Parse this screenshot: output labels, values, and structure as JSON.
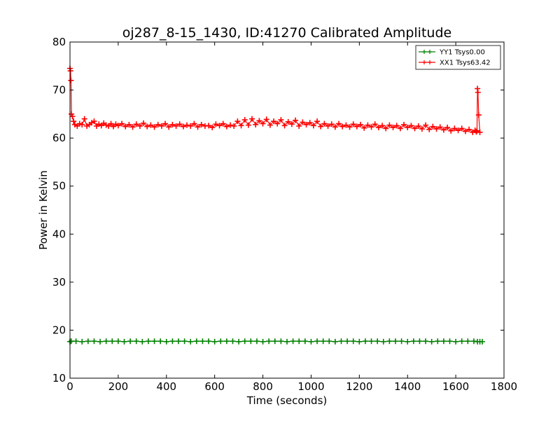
{
  "chart_data": {
    "type": "line",
    "title": "oj287_8-15_1430, ID:41270 Calibrated Amplitude",
    "xlabel": "Time (seconds)",
    "ylabel": "Power in Kelvin",
    "xlim": [
      0,
      1800
    ],
    "ylim": [
      10,
      80
    ],
    "xticks": [
      0,
      200,
      400,
      600,
      800,
      1000,
      1200,
      1400,
      1600,
      1800
    ],
    "xtick_labels": [
      "0",
      "200",
      "400",
      "600",
      "800",
      "1000",
      "1200",
      "1400",
      "1600",
      "1800"
    ],
    "yticks": [
      10,
      20,
      30,
      40,
      50,
      60,
      70,
      80
    ],
    "ytick_labels": [
      "10",
      "20",
      "30",
      "40",
      "50",
      "60",
      "70",
      "80"
    ],
    "grid": false,
    "legend_position": "top-right",
    "marker": "+",
    "series": [
      {
        "name": "YY1 Tsys0.00",
        "color": "#008000",
        "x": [
          0,
          5,
          25,
          50,
          75,
          100,
          125,
          150,
          175,
          200,
          225,
          250,
          275,
          300,
          325,
          350,
          375,
          400,
          425,
          450,
          475,
          500,
          525,
          550,
          575,
          600,
          625,
          650,
          675,
          700,
          725,
          750,
          775,
          800,
          825,
          850,
          875,
          900,
          925,
          950,
          975,
          1000,
          1025,
          1050,
          1075,
          1100,
          1125,
          1150,
          1175,
          1200,
          1225,
          1250,
          1275,
          1300,
          1325,
          1350,
          1375,
          1400,
          1425,
          1450,
          1475,
          1500,
          1525,
          1550,
          1575,
          1600,
          1625,
          1650,
          1675,
          1690,
          1700,
          1710
        ],
        "y": [
          17.6,
          17.7,
          17.7,
          17.6,
          17.7,
          17.7,
          17.6,
          17.7,
          17.7,
          17.7,
          17.6,
          17.7,
          17.7,
          17.6,
          17.7,
          17.7,
          17.7,
          17.6,
          17.7,
          17.7,
          17.7,
          17.6,
          17.7,
          17.7,
          17.7,
          17.6,
          17.7,
          17.7,
          17.7,
          17.6,
          17.7,
          17.7,
          17.7,
          17.6,
          17.7,
          17.7,
          17.7,
          17.6,
          17.7,
          17.7,
          17.7,
          17.6,
          17.7,
          17.7,
          17.7,
          17.6,
          17.7,
          17.7,
          17.7,
          17.6,
          17.7,
          17.7,
          17.7,
          17.6,
          17.7,
          17.7,
          17.7,
          17.6,
          17.7,
          17.7,
          17.7,
          17.6,
          17.7,
          17.7,
          17.7,
          17.6,
          17.7,
          17.7,
          17.7,
          17.6,
          17.6,
          17.6
        ]
      },
      {
        "name": "XX1 Tsys63.42",
        "color": "#ff0000",
        "x": [
          0,
          2,
          4,
          6,
          10,
          15,
          20,
          30,
          40,
          50,
          60,
          70,
          80,
          90,
          100,
          110,
          120,
          130,
          140,
          150,
          160,
          170,
          180,
          190,
          200,
          215,
          230,
          245,
          260,
          275,
          290,
          305,
          320,
          335,
          350,
          365,
          380,
          395,
          410,
          425,
          440,
          455,
          470,
          485,
          500,
          515,
          530,
          545,
          560,
          575,
          590,
          605,
          620,
          635,
          650,
          665,
          680,
          695,
          710,
          725,
          740,
          755,
          770,
          785,
          800,
          815,
          830,
          845,
          860,
          875,
          890,
          905,
          920,
          935,
          950,
          965,
          980,
          995,
          1010,
          1025,
          1040,
          1055,
          1070,
          1085,
          1100,
          1115,
          1130,
          1145,
          1160,
          1175,
          1190,
          1205,
          1220,
          1235,
          1250,
          1265,
          1280,
          1295,
          1310,
          1325,
          1340,
          1355,
          1370,
          1385,
          1400,
          1415,
          1430,
          1445,
          1460,
          1475,
          1490,
          1505,
          1520,
          1535,
          1550,
          1565,
          1580,
          1595,
          1610,
          1625,
          1640,
          1655,
          1670,
          1680,
          1685,
          1688,
          1690,
          1692,
          1695,
          1700
        ],
        "y": [
          74.5,
          74.0,
          72.0,
          65.0,
          64.5,
          63.5,
          62.8,
          62.5,
          63.0,
          62.8,
          64.0,
          62.5,
          62.8,
          63.2,
          63.5,
          62.5,
          62.9,
          62.6,
          63.1,
          62.7,
          62.5,
          63.0,
          62.4,
          62.9,
          62.6,
          63.0,
          62.4,
          62.8,
          62.3,
          62.9,
          62.5,
          63.1,
          62.4,
          62.7,
          62.3,
          62.8,
          62.5,
          63.0,
          62.3,
          62.8,
          62.5,
          62.9,
          62.4,
          62.7,
          62.5,
          63.0,
          62.3,
          62.8,
          62.5,
          62.6,
          62.2,
          62.9,
          62.6,
          63.0,
          62.4,
          62.7,
          62.5,
          63.5,
          62.6,
          63.8,
          62.7,
          64.0,
          62.8,
          63.6,
          63.0,
          63.9,
          62.7,
          63.5,
          63.0,
          63.8,
          62.6,
          63.4,
          62.9,
          63.7,
          62.5,
          63.3,
          62.8,
          63.2,
          62.6,
          63.5,
          62.4,
          63.0,
          62.5,
          62.9,
          62.3,
          63.0,
          62.4,
          62.7,
          62.3,
          62.9,
          62.4,
          62.8,
          62.1,
          62.7,
          62.3,
          62.9,
          62.2,
          62.6,
          62.0,
          62.7,
          62.2,
          62.6,
          62.0,
          62.8,
          62.2,
          62.6,
          62.0,
          62.5,
          61.9,
          62.7,
          61.8,
          62.4,
          61.9,
          62.3,
          61.7,
          62.2,
          61.5,
          62.0,
          61.6,
          62.0,
          61.4,
          61.8,
          61.2,
          61.6,
          61.3,
          61.5,
          70.3,
          69.5,
          64.8,
          61.2
        ]
      }
    ]
  }
}
